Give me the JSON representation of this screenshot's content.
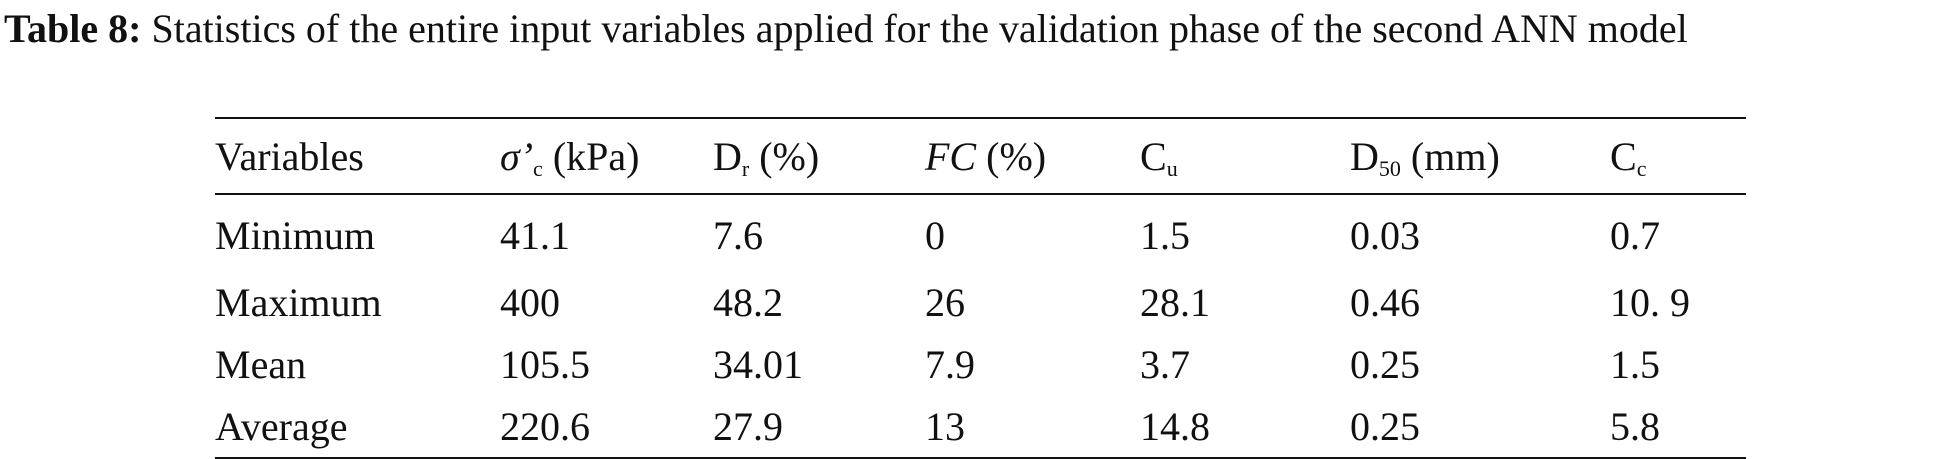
{
  "caption": {
    "label": "Table 8:",
    "text": "Statistics of the entire input variables applied for the validation phase of the second ANN model"
  },
  "table": {
    "headers": {
      "variables": "Variables",
      "sigma_c": {
        "sym": "σ’",
        "sub": "c",
        "unit": "(kPa)"
      },
      "dr": {
        "sym": "D",
        "sub": "r",
        "unit": "(%)"
      },
      "fc": {
        "sym": "FC",
        "unit": "(%)"
      },
      "cu": {
        "sym": "C",
        "sub": "u"
      },
      "d50": {
        "sym": "D",
        "sub": "50",
        "unit": "(mm)"
      },
      "cc": {
        "sym": "C",
        "sub": "c"
      }
    },
    "rows": [
      [
        "Minimum",
        "41.1",
        "7.6",
        "0",
        "1.5",
        "0.03",
        "0.7"
      ],
      [
        "Maximum",
        "400",
        "48.2",
        "26",
        "28.1",
        "0.46",
        "10. 9"
      ],
      [
        "Mean",
        "105.5",
        "34.01",
        "7.9",
        "3.7",
        "0.25",
        "1.5"
      ],
      [
        "Average",
        "220.6",
        "27.9",
        "13",
        "14.8",
        "0.25",
        "5.8"
      ]
    ]
  }
}
